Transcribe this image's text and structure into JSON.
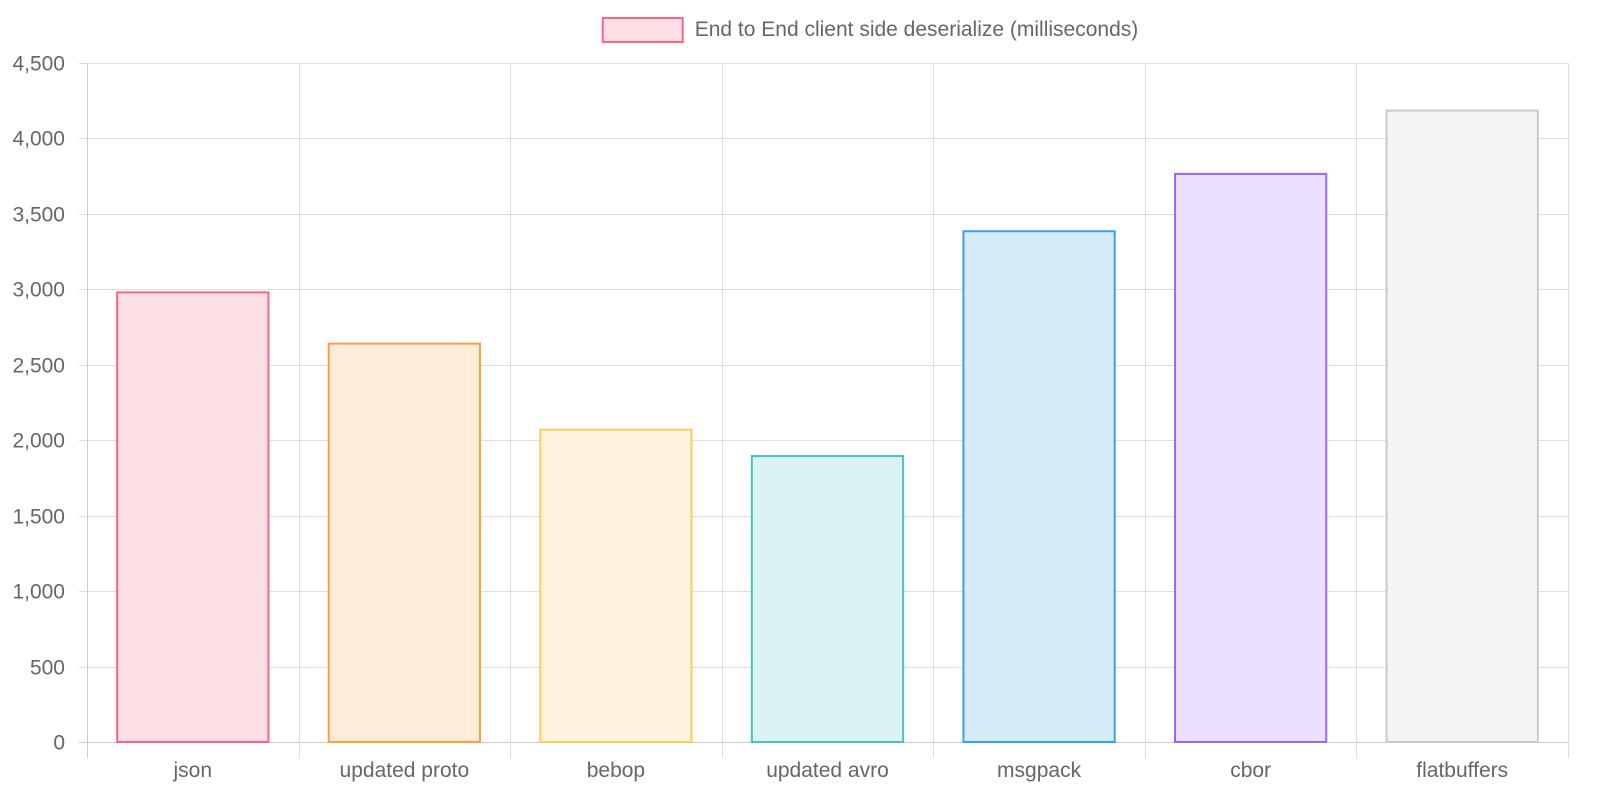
{
  "chart_data": {
    "type": "bar",
    "categories": [
      "json",
      "updated proto",
      "bebop",
      "updated avro",
      "msgpack",
      "cbor",
      "flatbuffers"
    ],
    "series": [
      {
        "name": "End to End client side deserialize (milliseconds)",
        "values": [
          2980,
          2640,
          2070,
          1895,
          3385,
          3765,
          4185
        ]
      }
    ],
    "ylim": [
      0,
      4500
    ],
    "yticks": [
      0,
      500,
      1000,
      1500,
      2000,
      2500,
      3000,
      3500,
      4000,
      4500
    ],
    "ytick_labels": [
      "0",
      "500",
      "1,000",
      "1,500",
      "2,000",
      "2,500",
      "3,000",
      "3,500",
      "4,000",
      "4,500"
    ],
    "grid": true,
    "legend_position": "top-center",
    "colors": {
      "border": [
        "#ff6384",
        "#ff9f40",
        "#ffcd56",
        "#4bc0c0",
        "#36a2eb",
        "#9966ff",
        "#c9cbcf"
      ],
      "fill": [
        "#ffdfe6",
        "#ffecd9",
        "#fff4dd",
        "#dbf2f2",
        "#d7ecfb",
        "#ebe0ff",
        "#f4f5f5"
      ],
      "grid": "#dddddd",
      "axis": "#cccccc",
      "text": "#666666"
    }
  }
}
